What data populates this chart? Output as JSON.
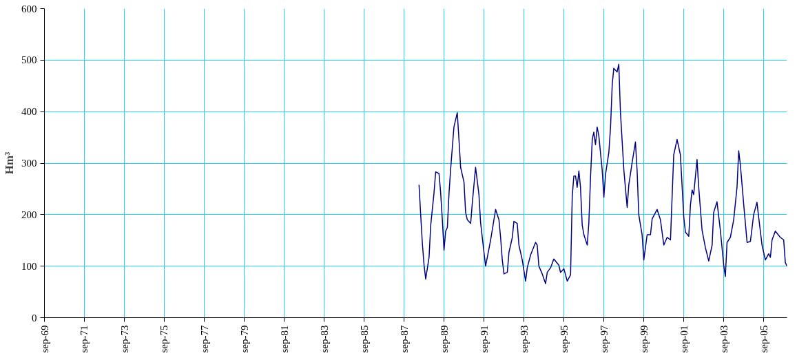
{
  "chart_data": {
    "type": "line",
    "ylabel": "Hm³",
    "grid": true,
    "xlim": [
      "1969-09",
      "2006-11"
    ],
    "ylim": [
      0,
      600
    ],
    "yticks": [
      0,
      100,
      200,
      300,
      400,
      500,
      600
    ],
    "xticks": [
      {
        "value": "1969-09",
        "label": "sep-69"
      },
      {
        "value": "1971-09",
        "label": "sep-71"
      },
      {
        "value": "1973-09",
        "label": "sep-73"
      },
      {
        "value": "1975-09",
        "label": "sep-75"
      },
      {
        "value": "1977-09",
        "label": "sep-77"
      },
      {
        "value": "1979-09",
        "label": "sep-79"
      },
      {
        "value": "1981-09",
        "label": "sep-81"
      },
      {
        "value": "1983-09",
        "label": "sep-83"
      },
      {
        "value": "1985-09",
        "label": "sep-85"
      },
      {
        "value": "1987-09",
        "label": "sep-87"
      },
      {
        "value": "1989-09",
        "label": "sep-89"
      },
      {
        "value": "1991-09",
        "label": "sep-91"
      },
      {
        "value": "1993-09",
        "label": "sep-93"
      },
      {
        "value": "1995-09",
        "label": "sep-95"
      },
      {
        "value": "1997-09",
        "label": "sep-97"
      },
      {
        "value": "1999-09",
        "label": "sep-99"
      },
      {
        "value": "2001-09",
        "label": "sep-01"
      },
      {
        "value": "2003-09",
        "label": "sep-03"
      },
      {
        "value": "2005-09",
        "label": "sep-05"
      }
    ],
    "series": [
      {
        "color": "#000080",
        "x": [
          "1988-06",
          "1988-07",
          "1988-08",
          "1988-09",
          "1988-10",
          "1988-12",
          "1989-01",
          "1989-03",
          "1989-04",
          "1989-06",
          "1989-07",
          "1989-08",
          "1989-09",
          "1989-10",
          "1989-11",
          "1989-12",
          "1990-01",
          "1990-03",
          "1990-05",
          "1990-06",
          "1990-07",
          "1990-09",
          "1990-10",
          "1990-11",
          "1991-01",
          "1991-02",
          "1991-04",
          "1991-06",
          "1991-07",
          "1991-09",
          "1991-10",
          "1991-11",
          "1992-01",
          "1992-03",
          "1992-04",
          "1992-06",
          "1992-07",
          "1992-08",
          "1992-09",
          "1992-11",
          "1992-12",
          "1993-02",
          "1993-03",
          "1993-05",
          "1993-06",
          "1993-08",
          "1993-10",
          "1993-11",
          "1994-01",
          "1994-04",
          "1994-05",
          "1994-06",
          "1994-08",
          "1994-10",
          "1994-11",
          "1995-01",
          "1995-03",
          "1995-06",
          "1995-07",
          "1995-09",
          "1995-11",
          "1996-01",
          "1996-02",
          "1996-03",
          "1996-04",
          "1996-05",
          "1996-06",
          "1996-07",
          "1996-08",
          "1996-09",
          "1996-11",
          "1996-12",
          "1997-01",
          "1997-02",
          "1997-03",
          "1997-04",
          "1997-05",
          "1997-06",
          "1997-08",
          "1997-09",
          "1997-10",
          "1997-12",
          "1998-01",
          "1998-02",
          "1998-03",
          "1998-05",
          "1998-06",
          "1998-07",
          "1998-09",
          "1998-11",
          "1998-12",
          "1999-02",
          "1999-04",
          "1999-05",
          "1999-06",
          "1999-08",
          "1999-09",
          "1999-11",
          "2000-01",
          "2000-02",
          "2000-05",
          "2000-07",
          "2000-09",
          "2000-11",
          "2001-01",
          "2001-02",
          "2001-03",
          "2001-05",
          "2001-07",
          "2001-09",
          "2001-10",
          "2001-12",
          "2002-01",
          "2002-02",
          "2002-03",
          "2002-05",
          "2002-06",
          "2002-08",
          "2002-10",
          "2002-12",
          "2003-02",
          "2003-03",
          "2003-05",
          "2003-07",
          "2003-09",
          "2003-10",
          "2003-11",
          "2004-01",
          "2004-03",
          "2004-05",
          "2004-06",
          "2004-07",
          "2004-09",
          "2004-11",
          "2005-01",
          "2005-03",
          "2005-05",
          "2005-06",
          "2005-08",
          "2005-10",
          "2005-12",
          "2006-01",
          "2006-02",
          "2006-04",
          "2006-07",
          "2006-09",
          "2006-10",
          "2006-11"
        ],
        "values": [
          258,
          200,
          144,
          102,
          75,
          117,
          180,
          241,
          283,
          280,
          243,
          190,
          131,
          168,
          175,
          241,
          290,
          370,
          398,
          346,
          292,
          263,
          204,
          190,
          183,
          224,
          292,
          239,
          185,
          127,
          100,
          117,
          151,
          190,
          210,
          190,
          156,
          112,
          85,
          88,
          127,
          156,
          187,
          183,
          141,
          112,
          71,
          97,
          122,
          146,
          141,
          100,
          85,
          66,
          88,
          97,
          114,
          102,
          88,
          95,
          71,
          83,
          236,
          275,
          275,
          253,
          285,
          253,
          180,
          161,
          141,
          185,
          275,
          346,
          360,
          336,
          370,
          353,
          287,
          234,
          278,
          321,
          370,
          453,
          484,
          477,
          492,
          399,
          287,
          214,
          258,
          302,
          341,
          287,
          200,
          161,
          112,
          161,
          161,
          192,
          210,
          190,
          141,
          156,
          151,
          239,
          316,
          346,
          316,
          195,
          166,
          158,
          219,
          248,
          239,
          307,
          253,
          170,
          136,
          110,
          141,
          204,
          225,
          170,
          102,
          80,
          146,
          156,
          190,
          253,
          324,
          297,
          219,
          146,
          148,
          200,
          224,
          195,
          141,
          112,
          124,
          117,
          151,
          168,
          156,
          151,
          107,
          100
        ]
      }
    ]
  }
}
